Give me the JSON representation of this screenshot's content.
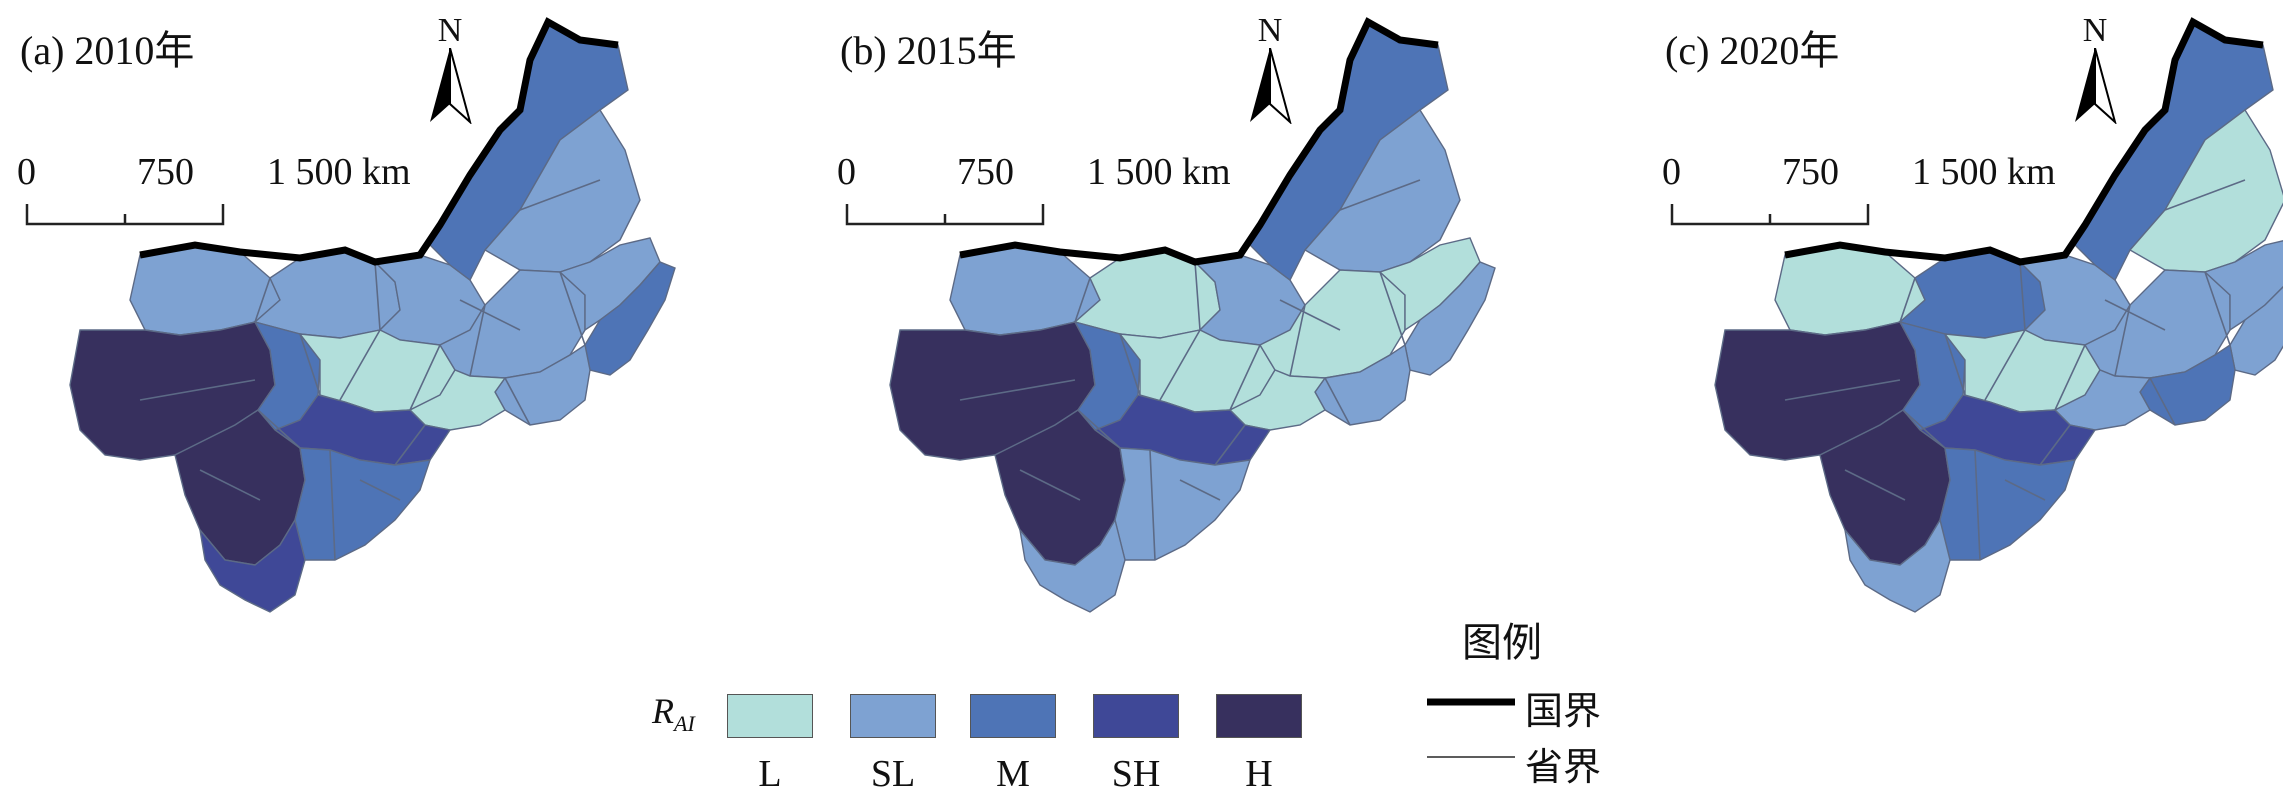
{
  "colors": {
    "L": "#b2dfdb",
    "SL": "#7ea2d2",
    "M": "#4e74b6",
    "SH": "#3f4897",
    "H": "#37305e",
    "province_line": "#5c6a86",
    "border_line": "#000000"
  },
  "panels": [
    {
      "title": "(a) 2010年",
      "north": "N",
      "scale_ticks": [
        "0",
        "750",
        "1 500 km"
      ],
      "regions": {
        "west": "H",
        "southwest": "H",
        "sw_tip": "SH",
        "qinghai_east": "M",
        "gansu_belt": "SH",
        "sichuan_east": "M",
        "xinjiang_north": "SL",
        "inner_west": "SL",
        "inner_mid": "SL",
        "central_core": "L",
        "loess": "L",
        "northeast": "M",
        "northeast_inner": "SL",
        "north_china": "SL",
        "shandong": "SL",
        "henan": "SL",
        "east_coast": "M"
      }
    },
    {
      "title": "(b) 2015年",
      "north": "N",
      "scale_ticks": [
        "0",
        "750",
        "1 500 km"
      ],
      "regions": {
        "west": "H",
        "southwest": "H",
        "sw_tip": "SL",
        "qinghai_east": "M",
        "gansu_belt": "SH",
        "sichuan_east": "SL",
        "xinjiang_north": "SL",
        "inner_west": "L",
        "inner_mid": "SL",
        "central_core": "L",
        "loess": "L",
        "northeast": "M",
        "northeast_inner": "SL",
        "north_china": "L",
        "shandong": "L",
        "henan": "SL",
        "east_coast": "SL"
      }
    },
    {
      "title": "(c) 2020年",
      "north": "N",
      "scale_ticks": [
        "0",
        "750",
        "1 500 km"
      ],
      "regions": {
        "west": "H",
        "southwest": "H",
        "sw_tip": "SL",
        "qinghai_east": "M",
        "gansu_belt": "SH",
        "sichuan_east": "M",
        "xinjiang_north": "L",
        "inner_west": "M",
        "inner_mid": "SL",
        "central_core": "L",
        "loess": "SL",
        "northeast": "M",
        "northeast_inner": "L",
        "north_china": "SL",
        "shandong": "SL",
        "henan": "M",
        "east_coast": "SL"
      }
    }
  ],
  "legend": {
    "title": "图例",
    "symbol_main": "R",
    "symbol_sub": "AI",
    "classes": [
      {
        "key": "L",
        "label": "L"
      },
      {
        "key": "SL",
        "label": "SL"
      },
      {
        "key": "M",
        "label": "M"
      },
      {
        "key": "SH",
        "label": "SH"
      },
      {
        "key": "H",
        "label": "H"
      }
    ],
    "national_border": "国界",
    "provincial_border": "省界"
  }
}
